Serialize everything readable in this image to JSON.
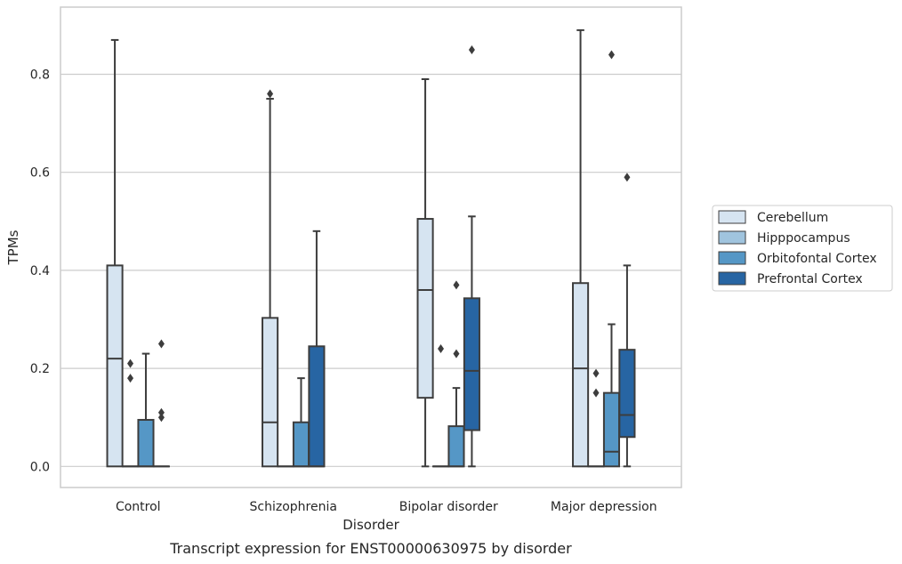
{
  "chart_data": {
    "type": "box",
    "caption": "Transcript expression for ENST00000630975 by disorder",
    "xlabel": "Disorder",
    "ylabel": "TPMs",
    "ylim": [
      -0.043,
      0.937
    ],
    "yticks": [
      "0.0",
      "0.2",
      "0.4",
      "0.6",
      "0.8"
    ],
    "ytick_values": [
      0.0,
      0.2,
      0.4,
      0.6,
      0.8
    ],
    "grid": "horizontal",
    "legend_position": "right",
    "categories": [
      "Control",
      "Schizophrenia",
      "Bipolar disorder",
      "Major depression"
    ],
    "series": [
      {
        "name": "Cerebellum",
        "color": "#d6e4f1",
        "boxes": [
          {
            "q1": 0.0,
            "median": 0.22,
            "q3": 0.41,
            "whisker_low": 0.0,
            "whisker_high": 0.87,
            "outliers": []
          },
          {
            "q1": 0.0,
            "median": 0.09,
            "q3": 0.303,
            "whisker_low": 0.0,
            "whisker_high": 0.75,
            "outliers": [
              0.76
            ]
          },
          {
            "q1": 0.14,
            "median": 0.36,
            "q3": 0.505,
            "whisker_low": 0.0,
            "whisker_high": 0.79,
            "outliers": []
          },
          {
            "q1": 0.0,
            "median": 0.2,
            "q3": 0.374,
            "whisker_low": 0.0,
            "whisker_high": 0.89,
            "outliers": []
          }
        ]
      },
      {
        "name": "Hipppocampus",
        "color": "#a0c4de",
        "boxes": [
          {
            "q1": 0.0,
            "median": 0.0,
            "q3": 0.0,
            "whisker_low": 0.0,
            "whisker_high": 0.0,
            "outliers": [
              0.21,
              0.18
            ]
          },
          {
            "q1": 0.0,
            "median": 0.0,
            "q3": 0.0,
            "whisker_low": 0.0,
            "whisker_high": 0.0,
            "outliers": []
          },
          {
            "q1": 0.0,
            "median": 0.0,
            "q3": 0.0,
            "whisker_low": 0.0,
            "whisker_high": 0.0,
            "outliers": [
              0.24
            ]
          },
          {
            "q1": 0.0,
            "median": 0.0,
            "q3": 0.0,
            "whisker_low": 0.0,
            "whisker_high": 0.0,
            "outliers": [
              0.19,
              0.15
            ]
          }
        ]
      },
      {
        "name": "Orbitofontal Cortex",
        "color": "#5597c6",
        "boxes": [
          {
            "q1": 0.0,
            "median": 0.0,
            "q3": 0.095,
            "whisker_low": 0.0,
            "whisker_high": 0.23,
            "outliers": []
          },
          {
            "q1": 0.0,
            "median": 0.0,
            "q3": 0.09,
            "whisker_low": 0.0,
            "whisker_high": 0.18,
            "outliers": []
          },
          {
            "q1": 0.0,
            "median": 0.0,
            "q3": 0.082,
            "whisker_low": 0.0,
            "whisker_high": 0.16,
            "outliers": [
              0.37,
              0.23
            ]
          },
          {
            "q1": 0.0,
            "median": 0.03,
            "q3": 0.15,
            "whisker_low": 0.0,
            "whisker_high": 0.29,
            "outliers": [
              0.84
            ]
          }
        ]
      },
      {
        "name": "Prefrontal Cortex",
        "color": "#2765a3",
        "boxes": [
          {
            "q1": 0.0,
            "median": 0.0,
            "q3": 0.0,
            "whisker_low": 0.0,
            "whisker_high": 0.0,
            "outliers": [
              0.25,
              0.11,
              0.1
            ]
          },
          {
            "q1": 0.0,
            "median": 0.0,
            "q3": 0.245,
            "whisker_low": 0.0,
            "whisker_high": 0.48,
            "outliers": []
          },
          {
            "q1": 0.074,
            "median": 0.195,
            "q3": 0.343,
            "whisker_low": 0.0,
            "whisker_high": 0.51,
            "outliers": [
              0.85
            ]
          },
          {
            "q1": 0.06,
            "median": 0.105,
            "q3": 0.238,
            "whisker_low": 0.0,
            "whisker_high": 0.41,
            "outliers": [
              0.59
            ]
          }
        ]
      }
    ]
  },
  "colors": {
    "background": "#ffffff",
    "grid": "#cccccc",
    "frame": "#cccccc",
    "box_edge": "#3d3d3d",
    "text": "#262626"
  }
}
